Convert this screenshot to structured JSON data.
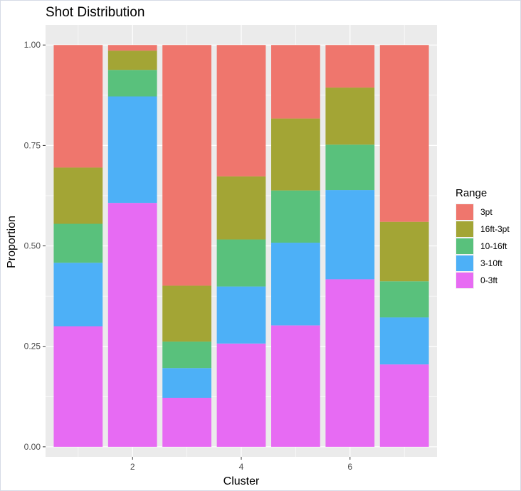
{
  "chart_data": {
    "type": "bar",
    "stacked": true,
    "title": "Shot Distribution",
    "xlabel": "Cluster",
    "ylabel": "Proportion",
    "categories": [
      1,
      2,
      3,
      4,
      5,
      6,
      7
    ],
    "x_tick_labels": [
      "2",
      "4",
      "6"
    ],
    "x_tick_values": [
      2,
      4,
      6
    ],
    "y_tick_labels": [
      "0.00",
      "0.25",
      "0.50",
      "0.75",
      "1.00"
    ],
    "y_tick_values": [
      0,
      0.25,
      0.5,
      0.75,
      1.0
    ],
    "ylim": [
      -0.025,
      1.05
    ],
    "xlim": [
      0.4,
      7.6
    ],
    "grid": true,
    "legend_title": "Range",
    "legend_position": "right",
    "series": [
      {
        "name": "0-3ft",
        "color": "#E76BF3",
        "values": [
          0.3,
          0.607,
          0.122,
          0.257,
          0.302,
          0.417,
          0.205
        ]
      },
      {
        "name": "3-10ft",
        "color": "#4DB0F7",
        "values": [
          0.158,
          0.265,
          0.074,
          0.142,
          0.206,
          0.222,
          0.117
        ]
      },
      {
        "name": "10-16ft",
        "color": "#59C17C",
        "values": [
          0.097,
          0.066,
          0.066,
          0.117,
          0.13,
          0.113,
          0.09
        ]
      },
      {
        "name": "16ft-3pt",
        "color": "#A3A535",
        "values": [
          0.14,
          0.048,
          0.139,
          0.157,
          0.179,
          0.142,
          0.148
        ]
      },
      {
        "name": "3pt",
        "color": "#EF766D",
        "values": [
          0.305,
          0.014,
          0.599,
          0.327,
          0.183,
          0.106,
          0.44
        ]
      }
    ],
    "legend_order": [
      "3pt",
      "16ft-3pt",
      "10-16ft",
      "3-10ft",
      "0-3ft"
    ]
  }
}
